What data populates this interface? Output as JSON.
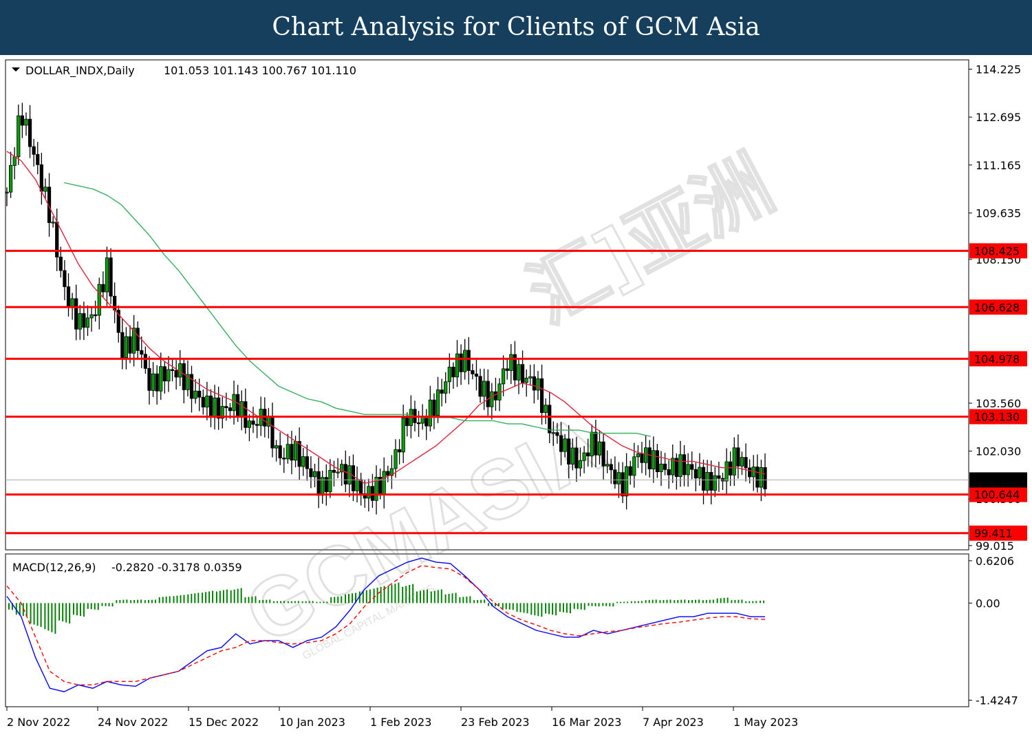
{
  "banner": {
    "title": "Chart Analysis for Clients of GCM Asia"
  },
  "watermark": {
    "text": "GCMASIA",
    "cn": "汇]亚洲",
    "tagline": "GLOBAL CAPITAL MARKETS"
  },
  "colors": {
    "up": "#00a000",
    "down": "#000000",
    "sma_fast": "#e0223a",
    "sma_slow": "#33b05e",
    "level": "#ff0000",
    "macd": "#0000ff",
    "signal": "#ff0000",
    "hist": "#008000",
    "banner": "#163f5e"
  },
  "chart_data": [
    {
      "type": "candlestick",
      "title": "DOLLAR_INDX,Daily",
      "ohlc_header": "101.053 101.143 100.767 101.110",
      "x_ticks": [
        "2 Nov 2022",
        "24 Nov 2022",
        "15 Dec 2022",
        "10 Jan 2023",
        "1 Feb 2023",
        "23 Feb 2023",
        "16 Mar 2023",
        "7 Apr 2023",
        "1 May 2023"
      ],
      "y_ticks": [
        "114.225",
        "112.695",
        "111.165",
        "109.635",
        "108.150",
        "103.560",
        "102.030",
        "100.500",
        "99.015"
      ],
      "ylim": [
        98.9,
        114.5
      ],
      "last_price": "101.110",
      "levels": [
        "108.425",
        "106.628",
        "104.978",
        "103.130",
        "100.644",
        "99.411"
      ],
      "close_path": [
        110.3,
        112.9,
        111.3,
        109.6,
        107.2,
        106.1,
        106.3,
        107.9,
        105.2,
        105.7,
        104.1,
        104.5,
        104.6,
        103.9,
        103.5,
        103.3,
        103.6,
        102.8,
        103.2,
        101.8,
        102.1,
        101.5,
        100.8,
        101.5,
        101.2,
        100.6,
        100.9,
        101.6,
        103.2,
        102.9,
        103.6,
        104.6,
        105.0,
        104.1,
        103.6,
        104.9,
        104.4,
        104.2,
        102.7,
        102.1,
        101.6,
        102.4,
        101.5,
        100.9,
        101.9,
        101.8,
        101.4,
        101.6,
        101.4,
        101.0,
        101.2,
        101.9,
        101.3,
        101.11
      ],
      "sma_fast": [
        111.6,
        111.3,
        110.7,
        109.8,
        108.9,
        108.0,
        107.3,
        106.8,
        106.3,
        105.8,
        105.3,
        104.9,
        104.6,
        104.3,
        104.0,
        103.8,
        103.6,
        103.3,
        103.0,
        102.7,
        102.4,
        102.1,
        101.8,
        101.5,
        101.3,
        101.0,
        101.1,
        101.3,
        101.6,
        101.9,
        102.2,
        102.6,
        103.0,
        103.5,
        103.8,
        104.0,
        104.2,
        104.1,
        103.9,
        103.6,
        103.2,
        102.8,
        102.5,
        102.2,
        102.0,
        101.9,
        101.8,
        101.7,
        101.7,
        101.6,
        101.5,
        101.5,
        101.4,
        101.3
      ],
      "sma_slow": [
        null,
        null,
        null,
        null,
        110.6,
        110.5,
        110.4,
        110.2,
        109.9,
        109.4,
        108.9,
        108.3,
        107.8,
        107.2,
        106.6,
        106.0,
        105.4,
        104.9,
        104.5,
        104.1,
        103.9,
        103.7,
        103.6,
        103.4,
        103.3,
        103.2,
        103.2,
        103.2,
        103.2,
        103.1,
        103.1,
        103.1,
        103.0,
        103.0,
        103.0,
        102.9,
        102.9,
        102.8,
        102.7,
        102.7,
        102.7,
        102.6,
        102.6,
        102.6,
        102.6,
        102.5,
        null,
        null,
        null,
        null,
        null,
        null,
        null,
        null
      ]
    },
    {
      "type": "macd",
      "title": "MACD(12,26,9)",
      "values_header": "-0.2820 -0.3178 0.0359",
      "y_ticks": [
        "0.6206",
        "0.00",
        "-1.4247"
      ],
      "ylim": [
        -1.5,
        0.7
      ],
      "macd": [
        0.1,
        -0.2,
        -0.8,
        -1.25,
        -1.3,
        -1.2,
        -1.25,
        -1.15,
        -1.2,
        -1.22,
        -1.1,
        -1.05,
        -1.0,
        -0.85,
        -0.7,
        -0.65,
        -0.45,
        -0.6,
        -0.55,
        -0.55,
        -0.65,
        -0.55,
        -0.5,
        -0.35,
        -0.1,
        0.2,
        0.4,
        0.5,
        0.6,
        0.66,
        0.6,
        0.58,
        0.4,
        0.2,
        -0.05,
        -0.2,
        -0.3,
        -0.4,
        -0.45,
        -0.5,
        -0.5,
        -0.4,
        -0.45,
        -0.4,
        -0.35,
        -0.3,
        -0.25,
        -0.2,
        -0.2,
        -0.15,
        -0.15,
        -0.15,
        -0.2,
        -0.2
      ],
      "signal": [
        0.25,
        0.0,
        -0.5,
        -1.0,
        -1.15,
        -1.2,
        -1.2,
        -1.15,
        -1.15,
        -1.15,
        -1.1,
        -1.05,
        -1.0,
        -0.9,
        -0.8,
        -0.7,
        -0.65,
        -0.55,
        -0.55,
        -0.58,
        -0.6,
        -0.58,
        -0.55,
        -0.45,
        -0.3,
        -0.05,
        0.15,
        0.3,
        0.45,
        0.55,
        0.52,
        0.5,
        0.38,
        0.2,
        0.02,
        -0.15,
        -0.25,
        -0.32,
        -0.4,
        -0.45,
        -0.48,
        -0.45,
        -0.42,
        -0.4,
        -0.36,
        -0.33,
        -0.3,
        -0.28,
        -0.25,
        -0.22,
        -0.2,
        -0.2,
        -0.23,
        -0.24
      ],
      "hist": [
        -0.1,
        -0.2,
        -0.35,
        -0.45,
        -0.3,
        -0.2,
        -0.1,
        -0.05,
        0.05,
        0.05,
        0.05,
        0.1,
        0.12,
        0.15,
        0.18,
        0.2,
        0.22,
        0.1,
        0.05,
        0.03,
        0.03,
        0.03,
        0.02,
        0.1,
        0.15,
        0.2,
        0.25,
        0.3,
        0.28,
        0.2,
        0.2,
        0.15,
        0.1,
        0.05,
        -0.05,
        -0.1,
        -0.15,
        -0.2,
        -0.18,
        -0.15,
        -0.1,
        -0.05,
        -0.05,
        0.02,
        0.03,
        0.05,
        0.05,
        0.05,
        0.05,
        0.05,
        0.08,
        0.05,
        0.03,
        0.04
      ]
    }
  ]
}
